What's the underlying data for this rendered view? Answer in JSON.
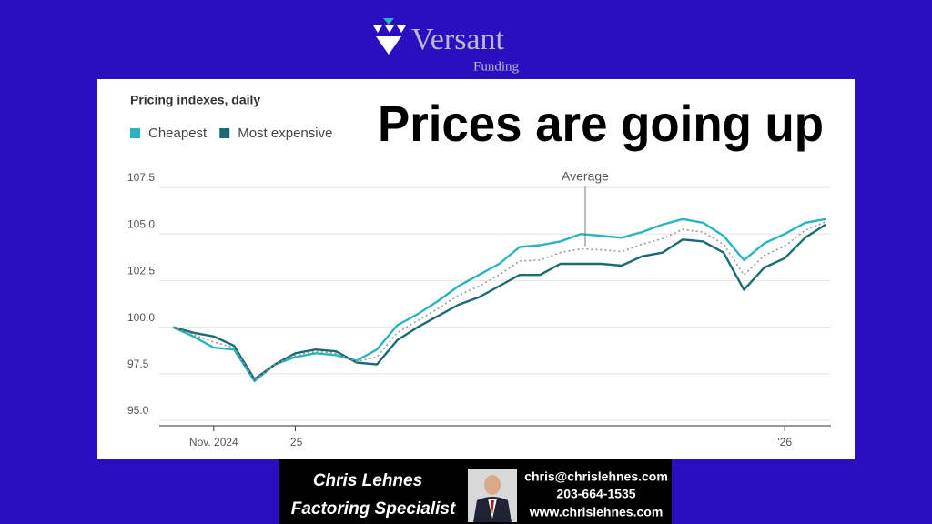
{
  "logo": {
    "name": "Versant",
    "sub": "Funding"
  },
  "headline": "Prices are going up",
  "banner": {
    "name": "Chris Lehnes",
    "role": "Factoring Specialist",
    "email": "chris@chrislehnes.com",
    "phone": "203-664-1535",
    "web": "www.chrislehnes.com"
  },
  "chart_data": {
    "type": "line",
    "title": "Pricing indexes, daily",
    "annotation": "Average",
    "categories": [
      null,
      null,
      "Nov. 2024",
      null,
      null,
      null,
      "'25",
      null,
      null,
      null,
      null,
      null,
      null,
      null,
      null,
      null,
      null,
      null,
      null,
      null,
      null,
      null,
      null,
      null,
      null,
      null,
      null,
      null,
      null,
      null,
      "'26",
      null,
      null
    ],
    "series": [
      {
        "name": "Cheapest",
        "color": "#2bb3c2",
        "style": "solid",
        "values": [
          100.0,
          99.5,
          98.9,
          98.8,
          97.1,
          98.0,
          98.4,
          98.6,
          98.5,
          98.2,
          98.8,
          100.1,
          100.7,
          101.4,
          102.2,
          102.8,
          103.4,
          104.3,
          104.4,
          104.6,
          105.0,
          104.9,
          104.8,
          105.1,
          105.5,
          105.8,
          105.6,
          104.9,
          103.6,
          104.5,
          105.0,
          105.6,
          105.8
        ]
      },
      {
        "name": "Most expensive",
        "color": "#1b6b72",
        "style": "solid",
        "values": [
          100.0,
          99.7,
          99.5,
          99.0,
          97.2,
          98.0,
          98.6,
          98.8,
          98.7,
          98.1,
          98.0,
          99.3,
          100.0,
          100.6,
          101.2,
          101.6,
          102.2,
          102.8,
          102.8,
          103.4,
          103.4,
          103.4,
          103.3,
          103.8,
          104.0,
          104.7,
          104.6,
          104.0,
          102.0,
          103.2,
          103.7,
          104.8,
          105.5
        ]
      },
      {
        "name": "Average",
        "color": "#999999",
        "style": "dotted",
        "values": [
          100.0,
          99.6,
          99.2,
          98.9,
          97.15,
          98.0,
          98.5,
          98.7,
          98.6,
          98.15,
          98.4,
          99.7,
          100.35,
          101.0,
          101.7,
          102.2,
          102.8,
          103.55,
          103.6,
          104.0,
          104.2,
          104.15,
          104.05,
          104.45,
          104.75,
          105.25,
          105.1,
          104.45,
          102.8,
          103.85,
          104.35,
          105.2,
          105.65
        ]
      }
    ],
    "ylim": [
      94.6,
      108.5
    ],
    "yticks": [
      {
        "value": 95,
        "label": "95.0"
      },
      97.5,
      {
        "value": 100,
        "label": "100.0"
      },
      102.5,
      {
        "value": 105,
        "label": "105.0"
      },
      107.5
    ],
    "grid": true
  }
}
